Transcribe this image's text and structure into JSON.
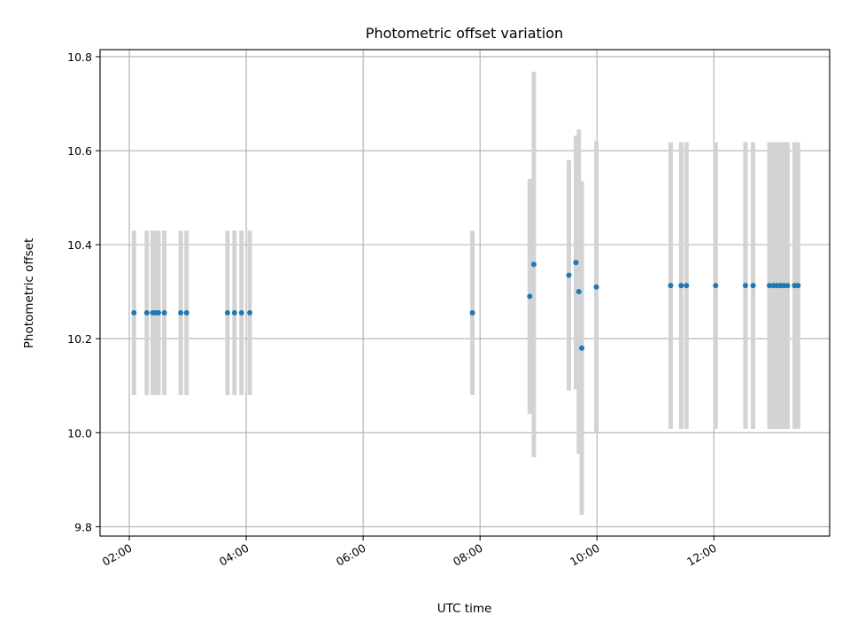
{
  "chart_data": {
    "type": "scatter",
    "title": "Photometric offset variation",
    "xlabel": "UTC time",
    "ylabel": "Photometric offset",
    "x_unit": "hours UTC",
    "xlim": [
      1.5,
      13.98
    ],
    "ylim": [
      9.78,
      10.815
    ],
    "x_ticks": [
      2,
      4,
      6,
      8,
      10,
      12
    ],
    "x_tick_labels": [
      "02:00",
      "04:00",
      "06:00",
      "08:00",
      "10:00",
      "12:00"
    ],
    "y_ticks": [
      9.8,
      10.0,
      10.2,
      10.4,
      10.6,
      10.8
    ],
    "y_tick_labels": [
      "9.8",
      "10.0",
      "10.2",
      "10.4",
      "10.6",
      "10.8"
    ],
    "grid": true,
    "colors": {
      "points": "#1f77b4",
      "errorbars": "#d3d3d3",
      "grid": "#b0b0b0"
    },
    "points": [
      {
        "x": 2.08,
        "y": 10.255,
        "err": 0.175
      },
      {
        "x": 2.3,
        "y": 10.255,
        "err": 0.175
      },
      {
        "x": 2.4,
        "y": 10.255,
        "err": 0.175
      },
      {
        "x": 2.45,
        "y": 10.255,
        "err": 0.175
      },
      {
        "x": 2.5,
        "y": 10.255,
        "err": 0.175
      },
      {
        "x": 2.6,
        "y": 10.255,
        "err": 0.175
      },
      {
        "x": 2.88,
        "y": 10.255,
        "err": 0.175
      },
      {
        "x": 2.98,
        "y": 10.255,
        "err": 0.175
      },
      {
        "x": 3.68,
        "y": 10.255,
        "err": 0.175
      },
      {
        "x": 3.8,
        "y": 10.255,
        "err": 0.175
      },
      {
        "x": 3.92,
        "y": 10.255,
        "err": 0.175
      },
      {
        "x": 4.06,
        "y": 10.255,
        "err": 0.175
      },
      {
        "x": 7.87,
        "y": 10.255,
        "err": 0.175
      },
      {
        "x": 8.85,
        "y": 10.29,
        "err": 0.25
      },
      {
        "x": 8.92,
        "y": 10.358,
        "err": 0.41
      },
      {
        "x": 9.52,
        "y": 10.335,
        "err": 0.245
      },
      {
        "x": 9.64,
        "y": 10.362,
        "err": 0.27
      },
      {
        "x": 9.69,
        "y": 10.3,
        "err": 0.345
      },
      {
        "x": 9.74,
        "y": 10.18,
        "err": 0.355
      },
      {
        "x": 9.99,
        "y": 10.31,
        "err": 0.31
      },
      {
        "x": 11.26,
        "y": 10.313,
        "err": 0.305
      },
      {
        "x": 11.44,
        "y": 10.313,
        "err": 0.305
      },
      {
        "x": 11.53,
        "y": 10.313,
        "err": 0.305
      },
      {
        "x": 12.03,
        "y": 10.313,
        "err": 0.305
      },
      {
        "x": 12.54,
        "y": 10.313,
        "err": 0.305
      },
      {
        "x": 12.67,
        "y": 10.313,
        "err": 0.305
      },
      {
        "x": 12.95,
        "y": 10.313,
        "err": 0.305
      },
      {
        "x": 13.02,
        "y": 10.313,
        "err": 0.305
      },
      {
        "x": 13.08,
        "y": 10.313,
        "err": 0.305
      },
      {
        "x": 13.14,
        "y": 10.313,
        "err": 0.305
      },
      {
        "x": 13.2,
        "y": 10.313,
        "err": 0.305
      },
      {
        "x": 13.26,
        "y": 10.313,
        "err": 0.305
      },
      {
        "x": 13.38,
        "y": 10.313,
        "err": 0.305
      },
      {
        "x": 13.44,
        "y": 10.313,
        "err": 0.305
      }
    ]
  }
}
